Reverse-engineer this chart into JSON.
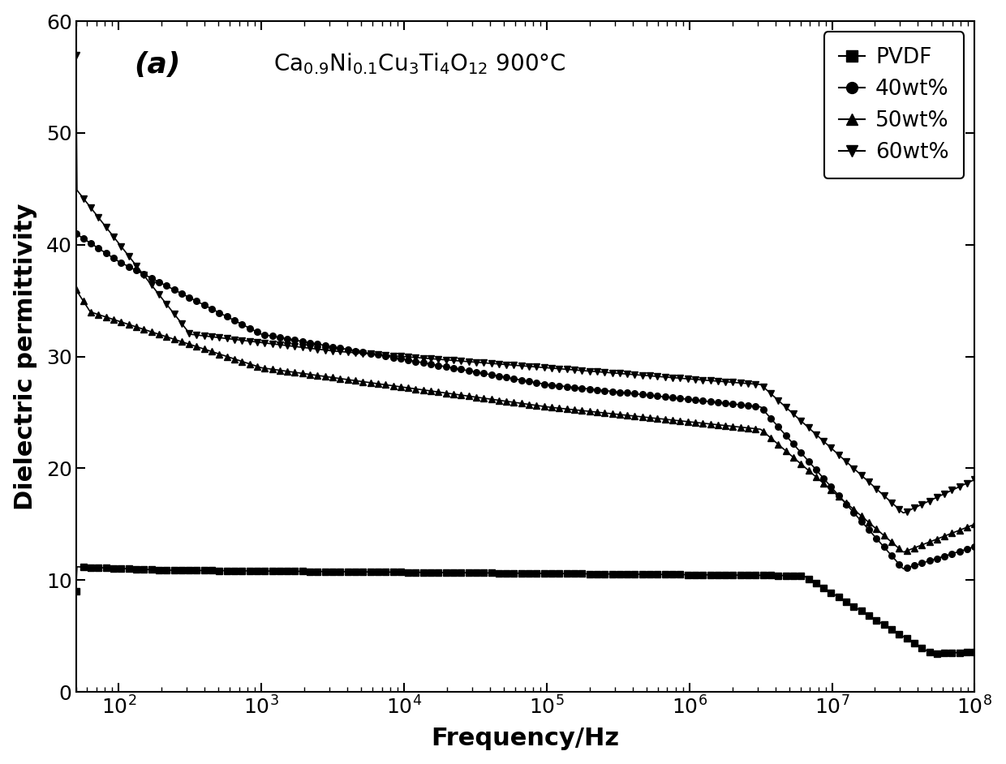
{
  "title_annotation": "(a)",
  "xlabel": "Frequency/Hz",
  "ylabel": "Dielectric permittivity",
  "ylim": [
    0,
    60
  ],
  "yticks": [
    0,
    10,
    20,
    30,
    40,
    50,
    60
  ],
  "background_color": "#ffffff",
  "legend_labels": [
    "PVDF",
    "40wt%",
    "50wt%",
    "60wt%"
  ],
  "markers": [
    "s",
    "o",
    "^",
    "v"
  ]
}
